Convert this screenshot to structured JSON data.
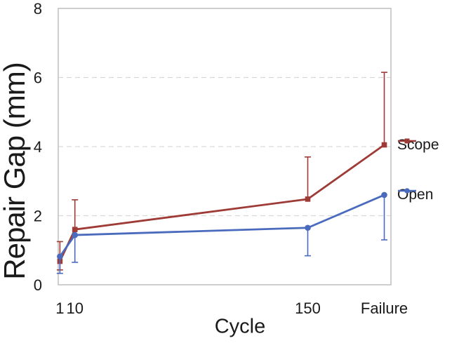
{
  "chart_data": {
    "type": "line",
    "title": "",
    "xlabel": "Cycle",
    "ylabel": "Repair Gap (mm)",
    "x_range": [
      0,
      200
    ],
    "ylim": [
      0,
      8
    ],
    "y_ticks": [
      0,
      2,
      4,
      6,
      8
    ],
    "y_gridlines": [
      2,
      4,
      6
    ],
    "grid": "horizontal dashed",
    "legend_position": "right, each entry aligned with series endpoint",
    "x_ticks": [
      {
        "pos": 1,
        "label": "1"
      },
      {
        "pos": 10,
        "label": "10"
      },
      {
        "pos": 150,
        "label": "150"
      },
      {
        "pos": 196,
        "label": "Failure"
      }
    ],
    "series": [
      {
        "name": "Scope",
        "color": "#9E3B36",
        "marker": "square",
        "x": [
          1,
          10,
          150,
          196
        ],
        "values": [
          0.68,
          1.6,
          2.48,
          4.05
        ],
        "err_upper": [
          1.25,
          2.46,
          3.7,
          6.15
        ],
        "err_lower": [
          0.43,
          null,
          null,
          null
        ]
      },
      {
        "name": "Open",
        "color": "#4A6BBD",
        "marker": "circle",
        "x": [
          1,
          10,
          150,
          196
        ],
        "values": [
          0.82,
          1.44,
          1.65,
          2.6
        ],
        "err_upper": [
          null,
          null,
          null,
          null
        ],
        "err_lower": [
          0.33,
          0.65,
          0.84,
          1.3
        ]
      }
    ],
    "style": {
      "gridline_color": "#D9D9D9",
      "axis_color": "#C2C2C2",
      "text_color": "#1A1A1A",
      "background": "#FFFFFF"
    }
  }
}
